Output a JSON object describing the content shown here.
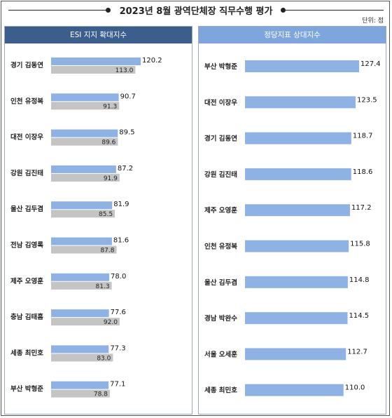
{
  "page": {
    "title": "2023년 8월 광역단체장 직무수행 평가",
    "unit": "단위: 점"
  },
  "colors": {
    "primary_bar": "#8fb2e4",
    "secondary_bar": "#c4c4c4",
    "left_header": "#3b5e8c",
    "right_header": "#7ea6dc"
  },
  "chart_data": [
    {
      "type": "bar",
      "title": "ESI 지지 확대지수",
      "categories": [
        "경기 김동연",
        "인천 유정복",
        "대전 이장우",
        "강원 김진태",
        "울산 김두겸",
        "전남 김영록",
        "제주 오영훈",
        "충남 김태흠",
        "세종 최민호",
        "부산 박형준"
      ],
      "series": [
        {
          "values": [
            120.2,
            90.7,
            89.5,
            87.2,
            81.9,
            81.6,
            78.0,
            77.6,
            77.3,
            77.1
          ],
          "labels": [
            "120.2",
            "90.7",
            "89.5",
            "87.2",
            "81.9",
            "81.6",
            "78.0",
            "77.6",
            "77.3",
            "77.1"
          ]
        },
        {
          "values": [
            113.0,
            91.3,
            89.6,
            91.9,
            85.5,
            87.8,
            81.3,
            92.0,
            83.0,
            78.8
          ],
          "labels": [
            "113.0",
            "91.3",
            "89.6",
            "91.9",
            "85.5",
            "87.8",
            "81.3",
            "92.0",
            "83.0",
            "78.8"
          ]
        }
      ],
      "orientation": "horizontal"
    },
    {
      "type": "bar",
      "title": "정당지표 상대지수",
      "categories": [
        "부산 박형준",
        "대전 이장우",
        "경기 김동연",
        "강원 김진태",
        "제주 오영훈",
        "인천 유정복",
        "울산 김두겸",
        "경남 박완수",
        "서울 오세훈",
        "세종 최민호"
      ],
      "series": [
        {
          "values": [
            127.4,
            123.5,
            118.7,
            118.6,
            117.2,
            115.8,
            114.8,
            114.5,
            112.7,
            110.0
          ],
          "labels": [
            "127.4",
            "123.5",
            "118.7",
            "118.6",
            "117.2",
            "115.8",
            "114.8",
            "114.5",
            "112.7",
            "110.0"
          ]
        }
      ],
      "orientation": "horizontal"
    }
  ]
}
